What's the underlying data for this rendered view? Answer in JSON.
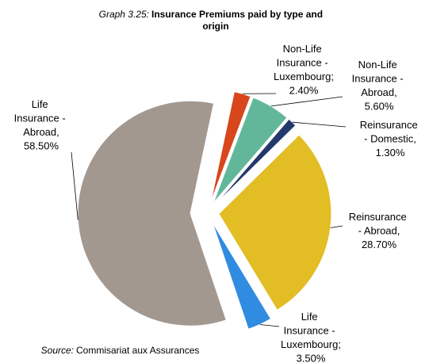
{
  "chart_data": {
    "type": "pie",
    "title_prefix": "Graph 3.25:",
    "title": "Insurance Premiums paid by type and origin",
    "categories": [
      "Non-Life Insurance - Luxembourg;",
      "Non-Life Insurance - Abroad,",
      "Reinsurance - Domestic,",
      "Reinsurance - Abroad,",
      "Life Insurance - Luxembourg;",
      "Life Insurance - Abroad,"
    ],
    "values": [
      2.4,
      5.6,
      1.3,
      28.7,
      3.5,
      58.5
    ],
    "value_labels": [
      "2.40%",
      "5.60%",
      "1.30%",
      "28.70%",
      "3.50%",
      "58.50%"
    ],
    "colors": [
      "#d8461b",
      "#62b79a",
      "#24396b",
      "#e2bd24",
      "#2f8ce0",
      "#a39890"
    ],
    "source_prefix": "Source:",
    "source": "Commisariat aux Assurances"
  }
}
